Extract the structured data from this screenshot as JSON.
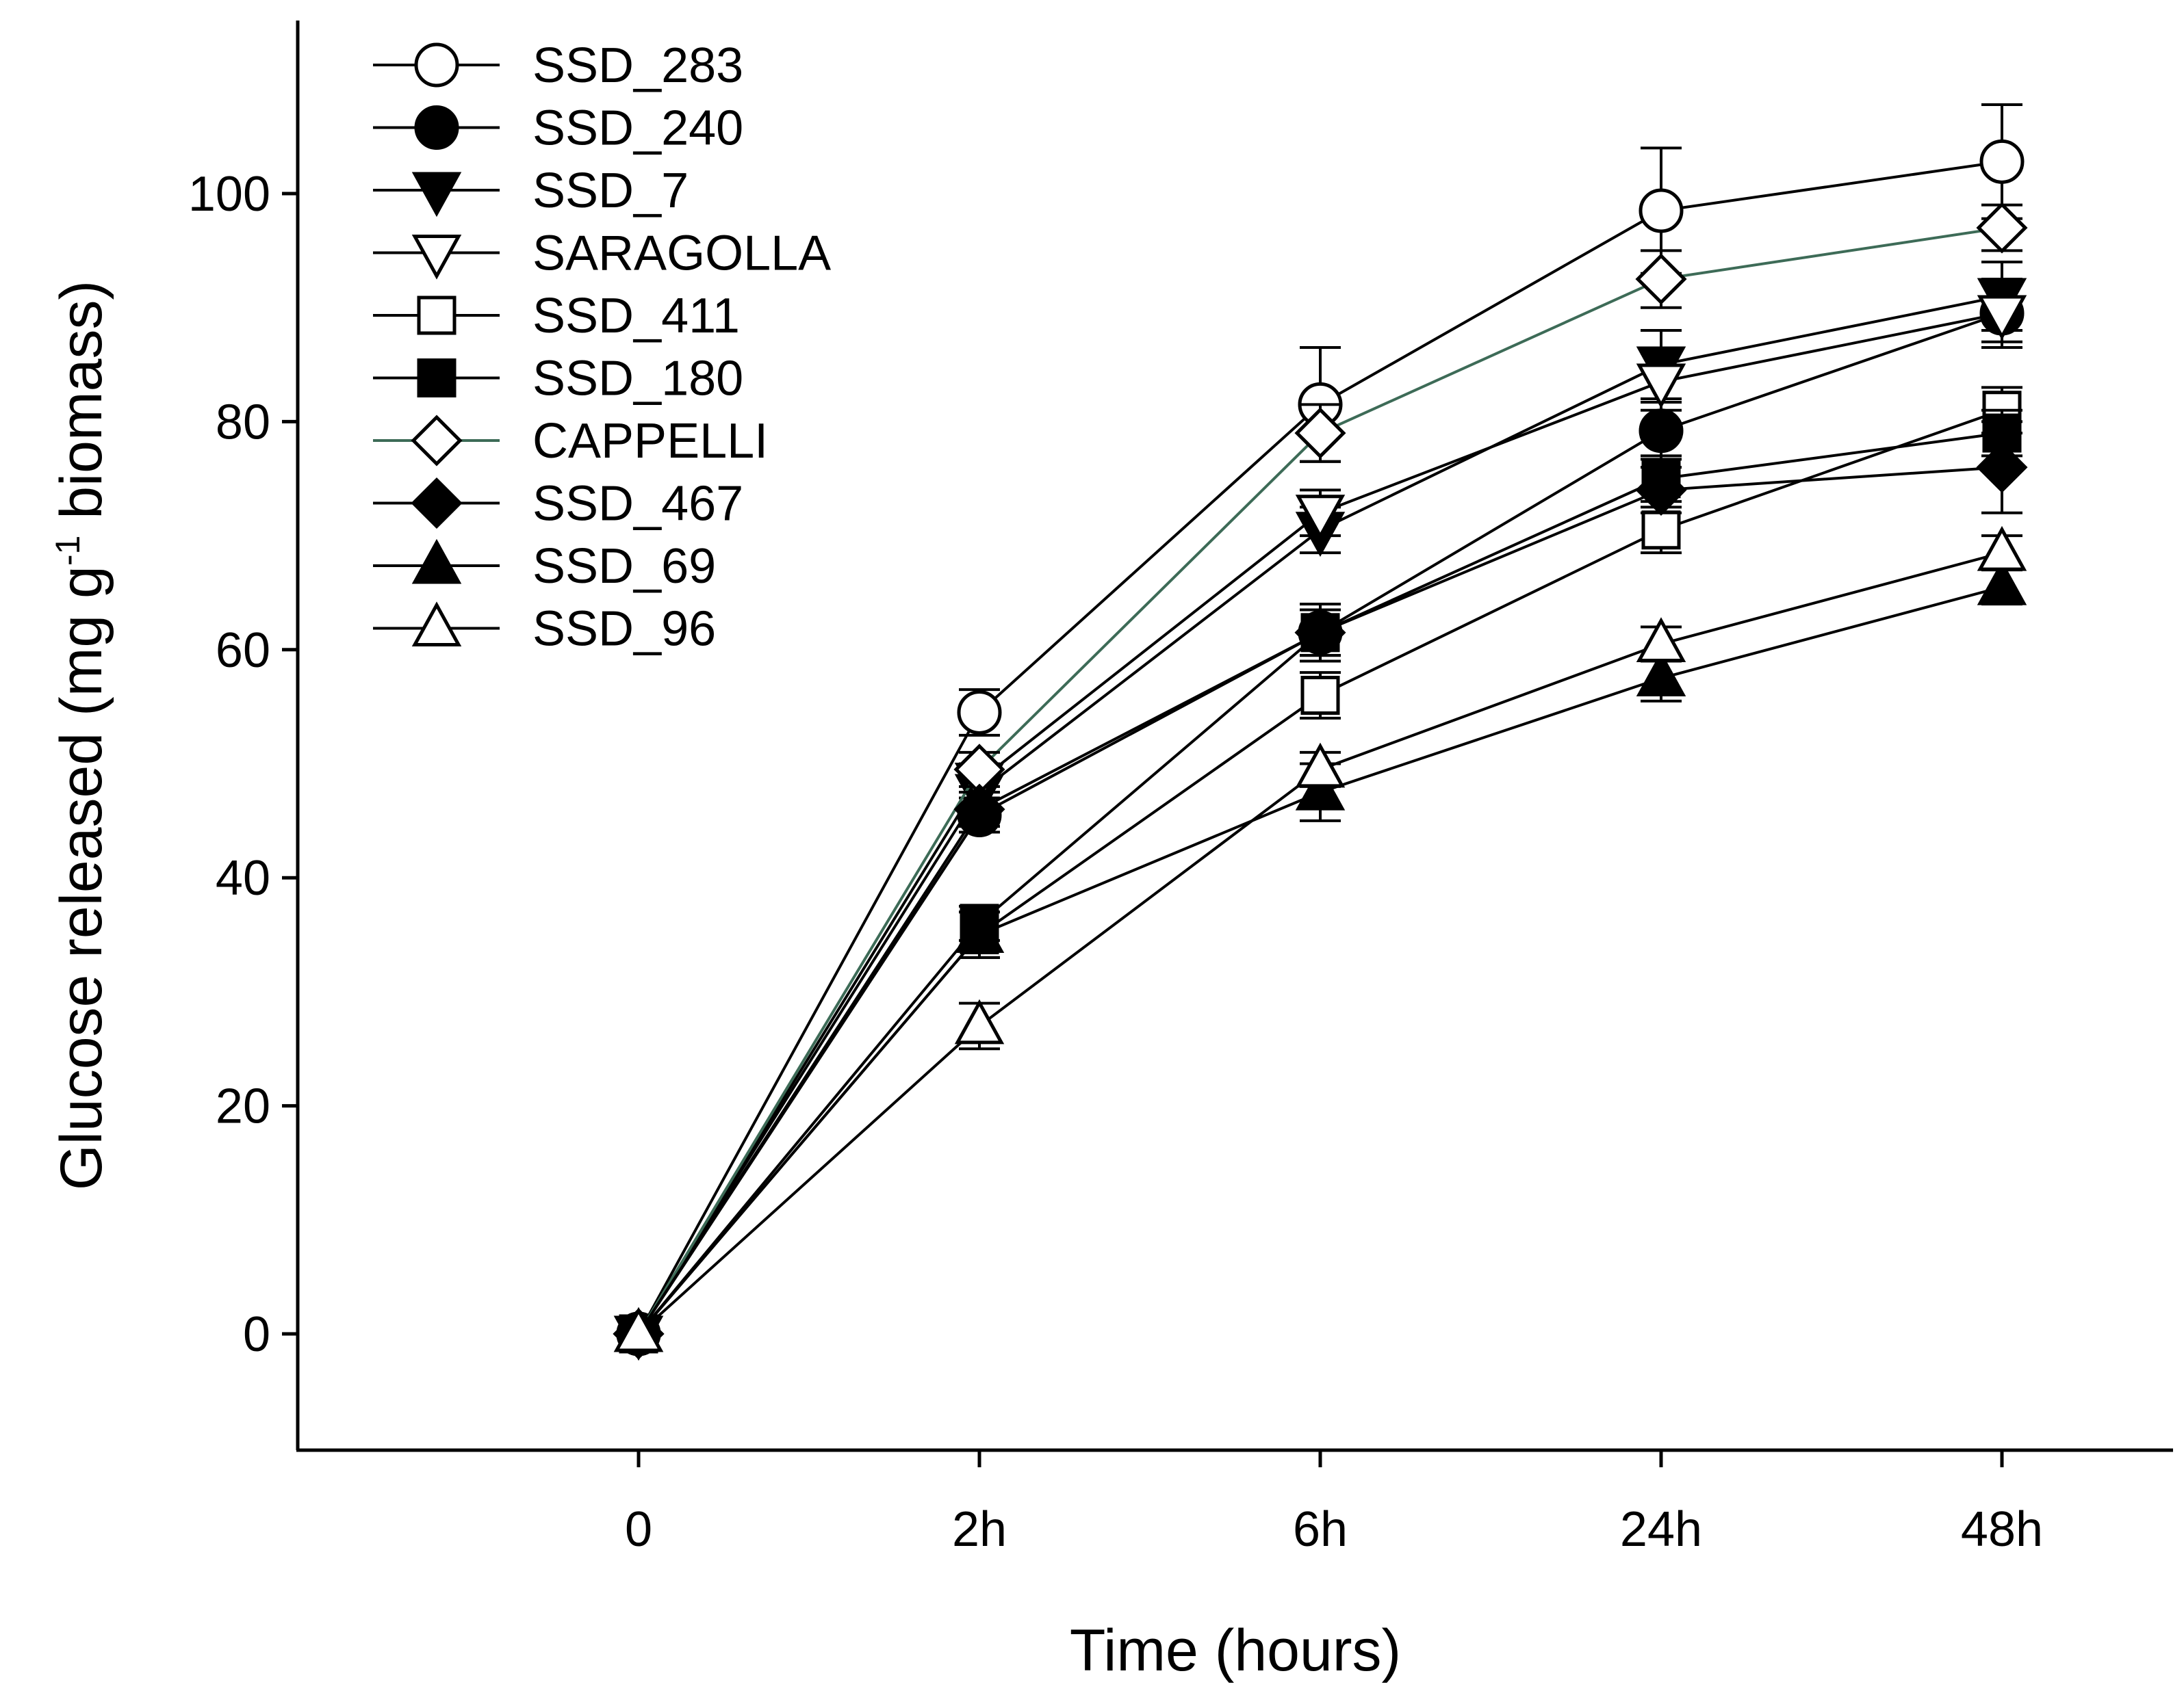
{
  "chart_data": {
    "type": "line",
    "x": [
      "0",
      "2h",
      "6h",
      "24h",
      "48h"
    ],
    "xlabel": "Time (hours)",
    "ylabel": {
      "prefix": "Glucose released (mg g",
      "superscript": "-1",
      "suffix": " biomass)"
    },
    "ylim": [
      -10,
      115
    ],
    "yticks": [
      0,
      20,
      40,
      60,
      80,
      100
    ],
    "ytick_labels": [
      "0",
      "20",
      "40",
      "60",
      "80",
      "100"
    ],
    "legend_position": "top-left",
    "series": [
      {
        "name": "SSD_283",
        "marker": "circle",
        "fill": "open",
        "color": "#000000",
        "values": [
          0,
          54.5,
          81.5,
          98.5,
          102.8
        ],
        "errors": [
          0,
          2.0,
          5.0,
          5.5,
          5.0
        ]
      },
      {
        "name": "SSD_240",
        "marker": "circle",
        "fill": "filled",
        "color": "#000000",
        "values": [
          0,
          45.5,
          61.5,
          79.2,
          89.5
        ],
        "errors": [
          0,
          1.5,
          2.0,
          2.5,
          3.0
        ]
      },
      {
        "name": "SSD_7",
        "marker": "triangle-down",
        "fill": "filled",
        "color": "#000000",
        "values": [
          0,
          47.5,
          70.5,
          85.0,
          91.0
        ],
        "errors": [
          0,
          1.5,
          2.0,
          3.0,
          3.0
        ]
      },
      {
        "name": "SARAGOLLA",
        "marker": "triangle-down",
        "fill": "open",
        "color": "#000000",
        "values": [
          0,
          48.5,
          72.0,
          83.5,
          89.5
        ],
        "errors": [
          0,
          1.5,
          2.0,
          2.5,
          2.5
        ]
      },
      {
        "name": "SSD_411",
        "marker": "square",
        "fill": "open",
        "color": "#000000",
        "values": [
          0,
          35.0,
          56.0,
          70.5,
          81.0
        ],
        "errors": [
          0,
          2.0,
          2.0,
          2.0,
          2.0
        ]
      },
      {
        "name": "SSD_180",
        "marker": "square",
        "fill": "filled",
        "color": "#000000",
        "values": [
          0,
          36.0,
          61.5,
          75.0,
          79.0
        ],
        "errors": [
          0,
          1.5,
          2.5,
          2.0,
          2.0
        ]
      },
      {
        "name": "CAPPELLI",
        "marker": "diamond",
        "fill": "open",
        "color": "#3d6b57",
        "values": [
          0,
          49.5,
          79.0,
          92.5,
          97.0
        ],
        "errors": [
          0,
          1.5,
          2.5,
          2.5,
          2.0
        ]
      },
      {
        "name": "SSD_467",
        "marker": "diamond",
        "fill": "filled",
        "color": "#000000",
        "values": [
          0,
          46.0,
          61.5,
          74.0,
          76.0
        ],
        "errors": [
          0,
          1.5,
          2.0,
          2.0,
          4.0
        ]
      },
      {
        "name": "SSD_69",
        "marker": "triangle-up",
        "fill": "filled",
        "color": "#000000",
        "values": [
          0,
          35.0,
          47.5,
          57.5,
          65.5
        ],
        "errors": [
          0,
          2.0,
          2.5,
          2.0,
          1.5
        ]
      },
      {
        "name": "SSD_96",
        "marker": "triangle-up",
        "fill": "open",
        "color": "#000000",
        "values": [
          0,
          27.0,
          49.5,
          60.5,
          68.5
        ],
        "errors": [
          0,
          2.0,
          1.5,
          1.5,
          1.5
        ]
      }
    ]
  }
}
